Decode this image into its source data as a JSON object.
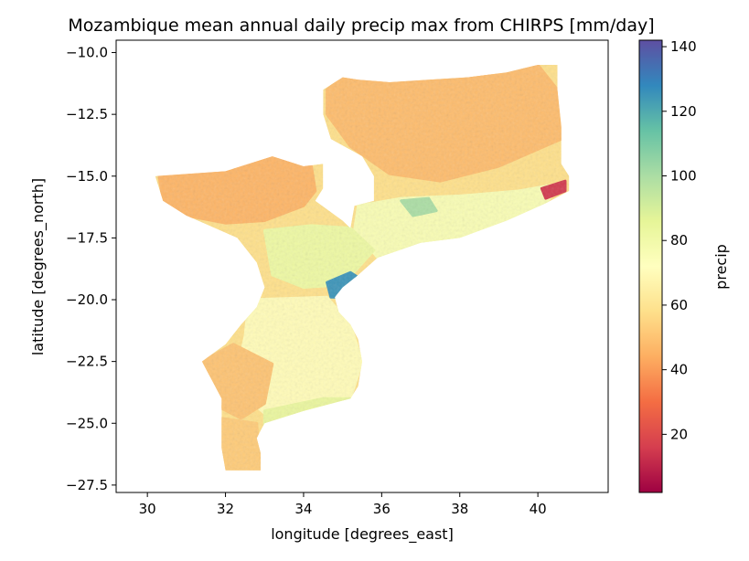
{
  "chart_data": {
    "type": "heatmap",
    "title": "Mozambique mean annual daily precip max from CHIRPS [mm/day]",
    "xlabel": "longitude [degrees_east]",
    "ylabel": "latitude [degrees_north]",
    "xlim": [
      29.2,
      41.8
    ],
    "ylim": [
      -27.8,
      -9.5
    ],
    "x_ticks": [
      {
        "value": 30,
        "label": "30"
      },
      {
        "value": 32,
        "label": "32"
      },
      {
        "value": 34,
        "label": "34"
      },
      {
        "value": 36,
        "label": "36"
      },
      {
        "value": 38,
        "label": "38"
      },
      {
        "value": 40,
        "label": "40"
      }
    ],
    "y_ticks": [
      {
        "value": -10.0,
        "label": "−10.0"
      },
      {
        "value": -12.5,
        "label": "−12.5"
      },
      {
        "value": -15.0,
        "label": "−15.0"
      },
      {
        "value": -17.5,
        "label": "−17.5"
      },
      {
        "value": -20.0,
        "label": "−20.0"
      },
      {
        "value": -22.5,
        "label": "−22.5"
      },
      {
        "value": -25.0,
        "label": "−25.0"
      },
      {
        "value": -27.5,
        "label": "−27.5"
      }
    ],
    "colorbar": {
      "label": "precip",
      "colormap": "Spectral",
      "range": [
        2,
        142
      ],
      "ticks": [
        {
          "value": 20,
          "label": "20"
        },
        {
          "value": 40,
          "label": "40"
        },
        {
          "value": 60,
          "label": "60"
        },
        {
          "value": 80,
          "label": "80"
        },
        {
          "value": 100,
          "label": "100"
        },
        {
          "value": 120,
          "label": "120"
        },
        {
          "value": 140,
          "label": "140"
        }
      ],
      "stops": [
        "#9e0142",
        "#d53e4f",
        "#f46d43",
        "#fdae61",
        "#fee08b",
        "#ffffbf",
        "#e6f598",
        "#abdda4",
        "#66c2a5",
        "#3288bd",
        "#5e4fa2"
      ]
    },
    "region_outline": [
      [
        35.0,
        -11.0
      ],
      [
        35.4,
        -11.1
      ],
      [
        36.2,
        -11.2
      ],
      [
        37.2,
        -11.1
      ],
      [
        38.2,
        -11.0
      ],
      [
        39.2,
        -10.8
      ],
      [
        40.0,
        -10.5
      ],
      [
        40.5,
        -10.5
      ],
      [
        40.5,
        -11.5
      ],
      [
        40.6,
        -13.0
      ],
      [
        40.6,
        -14.5
      ],
      [
        40.8,
        -15.0
      ],
      [
        40.8,
        -15.6
      ],
      [
        40.2,
        -16.1
      ],
      [
        39.2,
        -16.8
      ],
      [
        38.0,
        -17.5
      ],
      [
        37.0,
        -17.7
      ],
      [
        35.9,
        -18.3
      ],
      [
        35.4,
        -19.0
      ],
      [
        35.0,
        -19.5
      ],
      [
        34.8,
        -19.9
      ],
      [
        34.9,
        -20.5
      ],
      [
        35.2,
        -21.0
      ],
      [
        35.4,
        -21.6
      ],
      [
        35.5,
        -22.5
      ],
      [
        35.4,
        -23.5
      ],
      [
        35.2,
        -24.0
      ],
      [
        34.0,
        -24.5
      ],
      [
        33.0,
        -25.0
      ],
      [
        32.8,
        -25.6
      ],
      [
        32.9,
        -26.2
      ],
      [
        32.9,
        -26.9
      ],
      [
        32.0,
        -26.9
      ],
      [
        31.9,
        -26.0
      ],
      [
        31.9,
        -24.0
      ],
      [
        31.4,
        -22.5
      ],
      [
        32.0,
        -21.8
      ],
      [
        32.4,
        -21.0
      ],
      [
        32.8,
        -20.3
      ],
      [
        33.0,
        -19.5
      ],
      [
        32.8,
        -18.5
      ],
      [
        32.3,
        -17.5
      ],
      [
        31.0,
        -16.6
      ],
      [
        30.4,
        -16.0
      ],
      [
        30.2,
        -15.0
      ],
      [
        32.0,
        -14.8
      ],
      [
        33.2,
        -14.2
      ],
      [
        34.0,
        -14.6
      ],
      [
        34.5,
        -14.5
      ],
      [
        34.5,
        -15.5
      ],
      [
        34.3,
        -16.0
      ],
      [
        35.0,
        -16.8
      ],
      [
        35.2,
        -17.1
      ],
      [
        35.3,
        -16.2
      ],
      [
        35.8,
        -16.0
      ],
      [
        35.8,
        -15.0
      ],
      [
        35.5,
        -14.2
      ],
      [
        34.7,
        -13.5
      ],
      [
        34.5,
        -12.5
      ],
      [
        34.5,
        -11.5
      ]
    ],
    "value_regions": [
      {
        "name": "north-plateau",
        "value": 48,
        "points": [
          [
            35.0,
            -11.0
          ],
          [
            36.2,
            -11.2
          ],
          [
            38.2,
            -11.0
          ],
          [
            40.0,
            -10.5
          ],
          [
            40.5,
            -11.5
          ],
          [
            40.6,
            -13.5
          ],
          [
            39.0,
            -14.6
          ],
          [
            37.5,
            -15.2
          ],
          [
            36.2,
            -14.9
          ],
          [
            35.2,
            -13.8
          ],
          [
            34.6,
            -12.5
          ],
          [
            34.6,
            -11.5
          ]
        ]
      },
      {
        "name": "west-tete",
        "value": 46,
        "points": [
          [
            30.3,
            -15.0
          ],
          [
            32.0,
            -14.8
          ],
          [
            33.2,
            -14.2
          ],
          [
            34.2,
            -14.6
          ],
          [
            34.3,
            -15.6
          ],
          [
            34.0,
            -16.2
          ],
          [
            33.0,
            -16.8
          ],
          [
            32.0,
            -16.9
          ],
          [
            31.0,
            -16.6
          ],
          [
            30.4,
            -16.0
          ]
        ]
      },
      {
        "name": "coastal-central",
        "value": 76,
        "points": [
          [
            35.4,
            -16.2
          ],
          [
            36.5,
            -15.9
          ],
          [
            38.0,
            -15.8
          ],
          [
            39.5,
            -15.6
          ],
          [
            40.6,
            -15.3
          ],
          [
            40.2,
            -16.1
          ],
          [
            39.2,
            -16.8
          ],
          [
            38.0,
            -17.5
          ],
          [
            37.0,
            -17.7
          ],
          [
            35.9,
            -18.3
          ],
          [
            35.3,
            -17.2
          ]
        ]
      },
      {
        "name": "zambezi-valley",
        "value": 82,
        "points": [
          [
            33.0,
            -17.2
          ],
          [
            34.2,
            -17.0
          ],
          [
            35.2,
            -17.1
          ],
          [
            35.8,
            -18.0
          ],
          [
            35.0,
            -19.4
          ],
          [
            34.0,
            -19.5
          ],
          [
            33.2,
            -19.0
          ]
        ]
      },
      {
        "name": "south-central",
        "value": 70,
        "points": [
          [
            32.6,
            -20.0
          ],
          [
            34.6,
            -19.9
          ],
          [
            35.2,
            -21.0
          ],
          [
            35.5,
            -22.5
          ],
          [
            35.2,
            -24.0
          ],
          [
            33.8,
            -24.6
          ],
          [
            33.0,
            -24.6
          ],
          [
            32.2,
            -23.5
          ],
          [
            32.5,
            -21.5
          ]
        ]
      },
      {
        "name": "southwest",
        "value": 50,
        "points": [
          [
            31.4,
            -22.5
          ],
          [
            32.2,
            -21.8
          ],
          [
            33.2,
            -22.6
          ],
          [
            33.0,
            -24.2
          ],
          [
            32.4,
            -24.8
          ],
          [
            31.9,
            -24.4
          ]
        ]
      },
      {
        "name": "maputo",
        "value": 52,
        "points": [
          [
            31.9,
            -24.8
          ],
          [
            32.8,
            -25.0
          ],
          [
            32.9,
            -26.9
          ],
          [
            32.0,
            -26.9
          ],
          [
            31.9,
            -26.0
          ]
        ]
      },
      {
        "name": "limpopo-coast",
        "value": 84,
        "points": [
          [
            33.0,
            -24.5
          ],
          [
            34.5,
            -24.0
          ],
          [
            35.2,
            -24.0
          ],
          [
            34.0,
            -24.8
          ],
          [
            33.0,
            -25.2
          ]
        ]
      },
      {
        "name": "beira-wet",
        "value": 125,
        "points": [
          [
            34.6,
            -19.3
          ],
          [
            35.2,
            -18.9
          ],
          [
            35.5,
            -19.2
          ],
          [
            35.0,
            -19.9
          ],
          [
            34.7,
            -19.9
          ]
        ]
      },
      {
        "name": "gurue-wet",
        "value": 100,
        "points": [
          [
            36.5,
            -16.0
          ],
          [
            37.2,
            -15.9
          ],
          [
            37.4,
            -16.4
          ],
          [
            36.8,
            -16.6
          ]
        ]
      },
      {
        "name": "northeast-tip",
        "value": 15,
        "points": [
          [
            40.1,
            -15.5
          ],
          [
            40.7,
            -15.2
          ],
          [
            40.7,
            -15.6
          ],
          [
            40.2,
            -15.9
          ]
        ]
      }
    ]
  }
}
